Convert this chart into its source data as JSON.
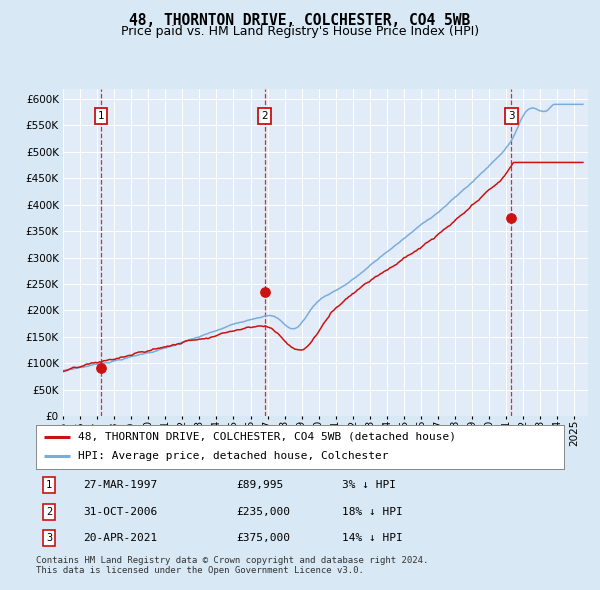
{
  "title": "48, THORNTON DRIVE, COLCHESTER, CO4 5WB",
  "subtitle": "Price paid vs. HM Land Registry's House Price Index (HPI)",
  "ylim": [
    0,
    620000
  ],
  "yticks": [
    0,
    50000,
    100000,
    150000,
    200000,
    250000,
    300000,
    350000,
    400000,
    450000,
    500000,
    550000,
    600000
  ],
  "xlim_start": 1995.0,
  "xlim_end": 2025.8,
  "bg_color": "#d8e8f4",
  "plot_bg": "#e2ecf8",
  "grid_color": "#ffffff",
  "hpi_color": "#7aaddb",
  "price_color": "#cc1111",
  "vline_color": "#cc1111",
  "sale_points": [
    {
      "year": 1997.23,
      "price": 89995,
      "label": "1"
    },
    {
      "year": 2006.83,
      "price": 235000,
      "label": "2"
    },
    {
      "year": 2021.3,
      "price": 375000,
      "label": "3"
    }
  ],
  "legend_entries": [
    {
      "label": "48, THORNTON DRIVE, COLCHESTER, CO4 5WB (detached house)",
      "color": "#cc1111"
    },
    {
      "label": "HPI: Average price, detached house, Colchester",
      "color": "#7aaddb"
    }
  ],
  "table_rows": [
    {
      "num": "1",
      "date": "27-MAR-1997",
      "price": "£89,995",
      "hpi": "3% ↓ HPI"
    },
    {
      "num": "2",
      "date": "31-OCT-2006",
      "price": "£235,000",
      "hpi": "18% ↓ HPI"
    },
    {
      "num": "3",
      "date": "20-APR-2021",
      "price": "£375,000",
      "hpi": "14% ↓ HPI"
    }
  ],
  "footnote": "Contains HM Land Registry data © Crown copyright and database right 2024.\nThis data is licensed under the Open Government Licence v3.0.",
  "title_fontsize": 10.5,
  "subtitle_fontsize": 9,
  "tick_fontsize": 7.5,
  "legend_fontsize": 8,
  "table_fontsize": 8,
  "footnote_fontsize": 6.5
}
